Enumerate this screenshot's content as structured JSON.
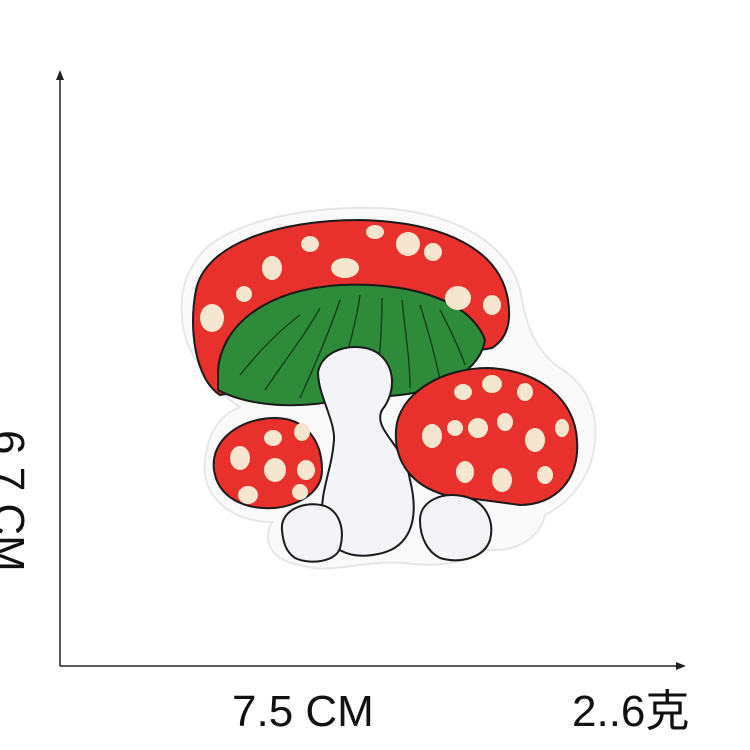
{
  "product": {
    "dimensions": {
      "width_label": "7.5 CM",
      "height_label": "6.7 CM"
    },
    "weight_label": "2..6克"
  },
  "colors": {
    "cap_red": "#e8302c",
    "gill_green": "#2e8b3a",
    "stem_white": "#f4f4f8",
    "spot_cream": "#f6e6cf",
    "outline": "#1a1a1a",
    "patch_border": "#f2f2f2"
  }
}
